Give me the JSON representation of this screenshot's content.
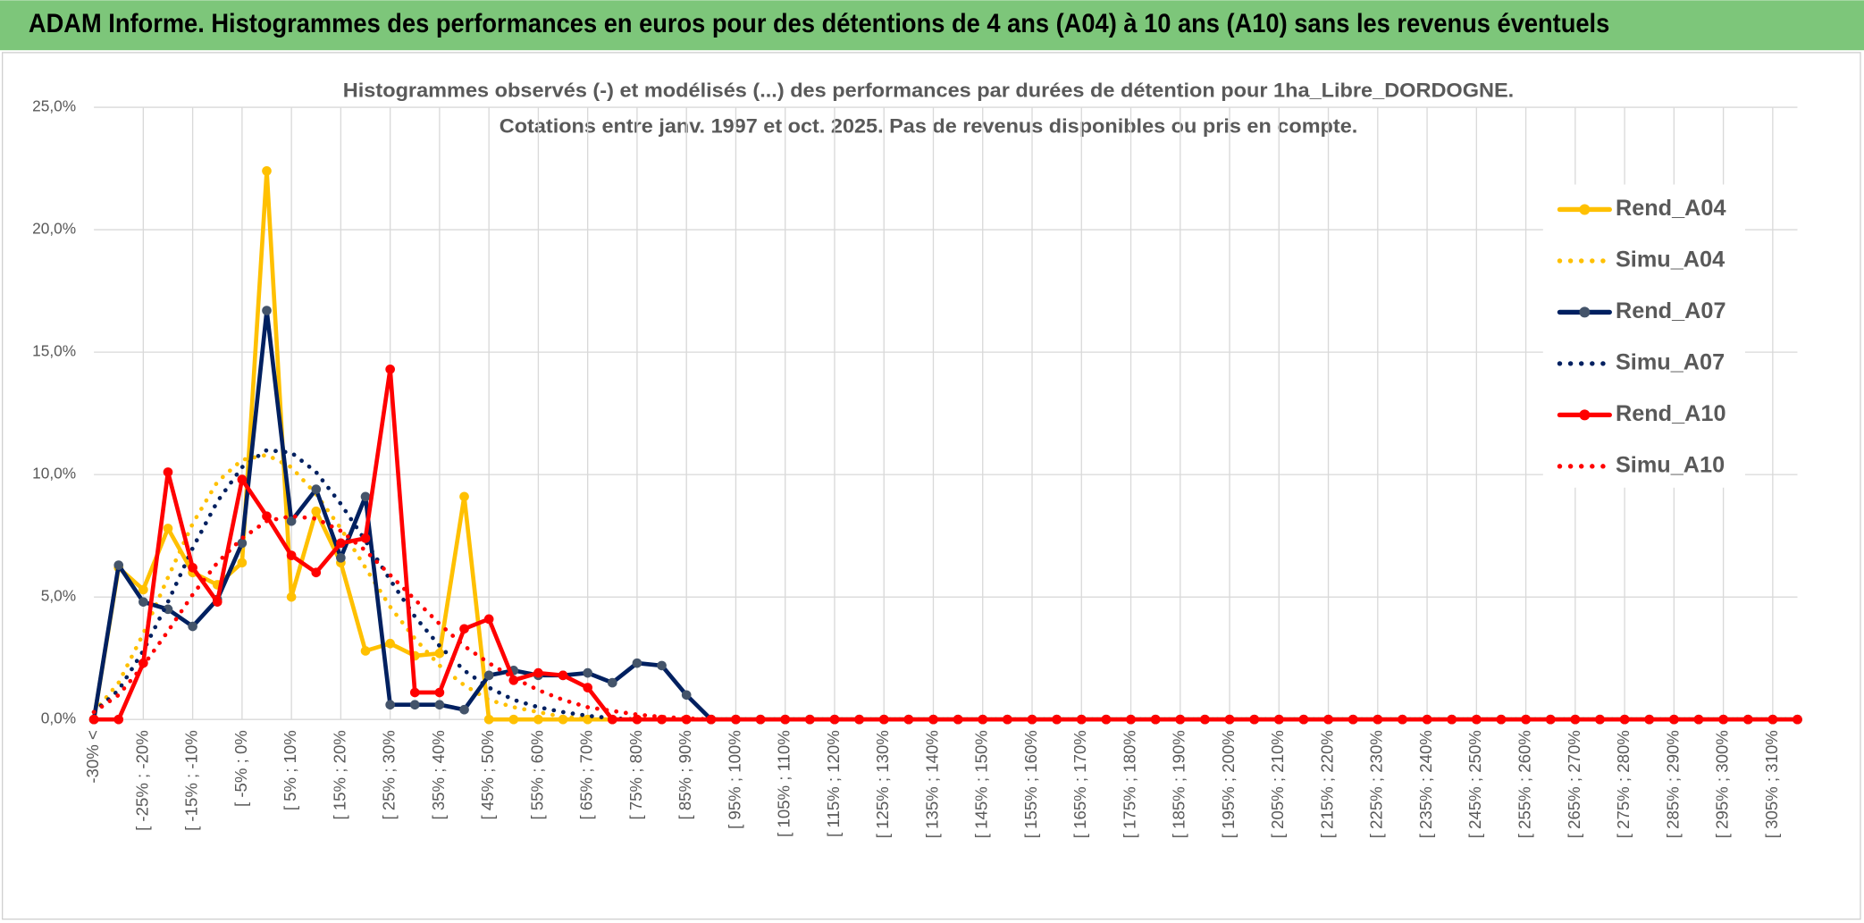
{
  "chart_data": {
    "type": "line",
    "title": "ADAM Informe. Histogrammes des performances en euros pour des détentions de 4 ans (A04) à 10 ans (A10) sans les revenus éventuels",
    "subtitle": [
      "Histogrammes observés (-) et modélisés (...) des performances par durées de détention pour 1ha_Libre_DORDOGNE.",
      "Cotations entre janv. 1997 et oct. 2025. Pas de revenus disponibles ou pris en compte."
    ],
    "categories": [
      "-30% <",
      null,
      "[ -25% ; -20%",
      null,
      "[ -15% ; -10%",
      null,
      "[ -5% ; 0%",
      null,
      "[ 5% ; 10%",
      null,
      "[ 15% ; 20%",
      null,
      "[ 25% ; 30%",
      null,
      "[ 35% ; 40%",
      null,
      "[ 45% ; 50%",
      null,
      "[ 55% ; 60%",
      null,
      "[ 65% ; 70%",
      null,
      "[ 75% ; 80%",
      null,
      "[ 85% ; 90%",
      null,
      "[ 95% ; 100%",
      null,
      "[ 105% ; 110%",
      null,
      "[ 115% ; 120%",
      null,
      "[ 125% ; 130%",
      null,
      "[ 135% ; 140%",
      null,
      "[ 145% ; 150%",
      null,
      "[ 155% ; 160%",
      null,
      "[ 165% ; 170%",
      null,
      "[ 175% ; 180%",
      null,
      "[ 185% ; 190%",
      null,
      "[ 195% ; 200%",
      null,
      "[ 205% ; 210%",
      null,
      "[ 215% ; 220%",
      null,
      "[ 225% ; 230%",
      null,
      "[ 235% ; 240%",
      null,
      "[ 245% ; 250%",
      null,
      "[ 255% ; 260%",
      null,
      "[ 265% ; 270%",
      null,
      "[ 275% ; 280%",
      null,
      "[ 285% ; 290%",
      null,
      "[ 295% ; 300%",
      null,
      "[ 305% ; 310%",
      null
    ],
    "series": [
      {
        "name": "Rend_A04",
        "color": "#FFC000",
        "style": "solid",
        "values": [
          0,
          6.2,
          5.3,
          7.8,
          6.0,
          5.5,
          6.4,
          22.4,
          5.0,
          8.5,
          6.4,
          2.8,
          3.1,
          2.6,
          2.7,
          9.1,
          0,
          0,
          0,
          0,
          0,
          0,
          0,
          0,
          0,
          0,
          0,
          0,
          0,
          0,
          0,
          0,
          0,
          0,
          0,
          0,
          0,
          0,
          0,
          0,
          0,
          0,
          0,
          0,
          0,
          0,
          0,
          0,
          0,
          0,
          0,
          0,
          0,
          0,
          0,
          0,
          0,
          0,
          0,
          0,
          0,
          0,
          0,
          0,
          0,
          0,
          0,
          0,
          0,
          0
        ]
      },
      {
        "name": "Simu_A04",
        "color": "#FFC000",
        "style": "dotted",
        "values": [
          0.3,
          1.5,
          3.5,
          5.8,
          8.0,
          9.7,
          10.6,
          10.8,
          10.3,
          9.2,
          7.8,
          6.2,
          4.6,
          3.3,
          2.2,
          1.4,
          0.8,
          0.5,
          0.3,
          0.1,
          0.05,
          0,
          0,
          0,
          0,
          0,
          0,
          0,
          0,
          0,
          0,
          0,
          0,
          0,
          0,
          0,
          0,
          0,
          0,
          0,
          0,
          0,
          0,
          0,
          0,
          0,
          0,
          0,
          0,
          0,
          0,
          0,
          0,
          0,
          0,
          0,
          0,
          0,
          0,
          0,
          0,
          0,
          0,
          0,
          0,
          0,
          0,
          0,
          0,
          0
        ]
      },
      {
        "name": "Rend_A07",
        "color": "#002060",
        "marker": "#44546A",
        "style": "solid",
        "values": [
          0,
          6.3,
          4.8,
          4.5,
          3.8,
          4.9,
          7.2,
          16.7,
          8.1,
          9.4,
          6.6,
          9.1,
          0.6,
          0.6,
          0.6,
          0.4,
          1.8,
          2.0,
          1.8,
          1.8,
          1.9,
          1.5,
          2.3,
          2.2,
          1.0,
          0,
          0,
          0,
          0,
          0,
          0,
          0,
          0,
          0,
          0,
          0,
          0,
          0,
          0,
          0,
          0,
          0,
          0,
          0,
          0,
          0,
          0,
          0,
          0,
          0,
          0,
          0,
          0,
          0,
          0,
          0,
          0,
          0,
          0,
          0,
          0,
          0,
          0,
          0,
          0,
          0,
          0,
          0,
          0,
          0
        ]
      },
      {
        "name": "Simu_A07",
        "color": "#002060",
        "style": "dotted",
        "values": [
          0.3,
          1.2,
          2.8,
          4.8,
          7.0,
          8.9,
          10.3,
          11.0,
          10.9,
          10.1,
          8.8,
          7.3,
          5.7,
          4.2,
          3.0,
          2.0,
          1.3,
          0.8,
          0.5,
          0.3,
          0.15,
          0.05,
          0,
          0,
          0,
          0,
          0,
          0,
          0,
          0,
          0,
          0,
          0,
          0,
          0,
          0,
          0,
          0,
          0,
          0,
          0,
          0,
          0,
          0,
          0,
          0,
          0,
          0,
          0,
          0,
          0,
          0,
          0,
          0,
          0,
          0,
          0,
          0,
          0,
          0,
          0,
          0,
          0,
          0,
          0,
          0,
          0,
          0,
          0,
          0
        ]
      },
      {
        "name": "Rend_A10",
        "color": "#FF0000",
        "style": "solid",
        "values": [
          0,
          0,
          2.3,
          10.1,
          6.2,
          4.8,
          9.8,
          8.3,
          6.7,
          6.0,
          7.2,
          7.4,
          14.3,
          1.1,
          1.1,
          3.7,
          4.1,
          1.6,
          1.9,
          1.8,
          1.3,
          0,
          0,
          0,
          0,
          0,
          0,
          0,
          0,
          0,
          0,
          0,
          0,
          0,
          0,
          0,
          0,
          0,
          0,
          0,
          0,
          0,
          0,
          0,
          0,
          0,
          0,
          0,
          0,
          0,
          0,
          0,
          0,
          0,
          0,
          0,
          0,
          0,
          0,
          0,
          0,
          0,
          0,
          0,
          0,
          0,
          0,
          0,
          0,
          0
        ]
      },
      {
        "name": "Simu_A10",
        "color": "#FF0000",
        "style": "dotted",
        "values": [
          0.3,
          1.0,
          2.2,
          3.6,
          5.1,
          6.4,
          7.4,
          8.1,
          8.3,
          8.2,
          7.7,
          6.9,
          5.9,
          4.9,
          3.9,
          3.0,
          2.3,
          1.7,
          1.2,
          0.8,
          0.5,
          0.35,
          0.2,
          0.1,
          0.05,
          0,
          0,
          0,
          0,
          0,
          0,
          0,
          0,
          0,
          0,
          0,
          0,
          0,
          0,
          0,
          0,
          0,
          0,
          0,
          0,
          0,
          0,
          0,
          0,
          0,
          0,
          0,
          0,
          0,
          0,
          0,
          0,
          0,
          0,
          0,
          0,
          0,
          0,
          0,
          0,
          0,
          0,
          0,
          0,
          0
        ]
      }
    ],
    "ylim": [
      0,
      25
    ],
    "yticks": [
      {
        "value": 0,
        "label": "0,0%"
      },
      {
        "value": 5,
        "label": "5,0%"
      },
      {
        "value": 10,
        "label": "10,0%"
      },
      {
        "value": 15,
        "label": "15,0%"
      },
      {
        "value": 20,
        "label": "20,0%"
      },
      {
        "value": 25,
        "label": "25,0%"
      }
    ],
    "grid": true,
    "legend": "right"
  }
}
